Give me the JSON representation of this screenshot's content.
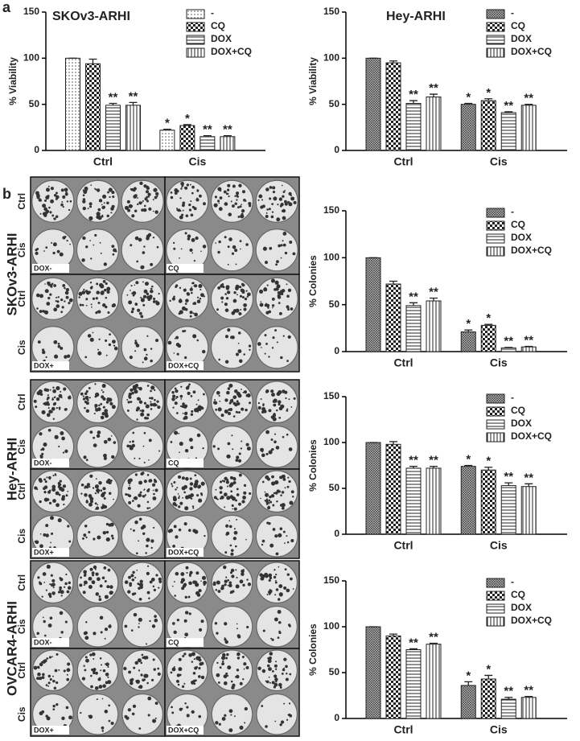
{
  "figure": {
    "panel_labels": [
      "a",
      "b"
    ],
    "cell_lines": [
      "SKOv3-ARHI",
      "Hey-ARHI",
      "OVCAR4-ARHI"
    ],
    "plate_rows": [
      "Ctrl",
      "Cis"
    ],
    "plate_tags": [
      "DOX-",
      "CQ",
      "DOX+",
      "DOX+CQ"
    ]
  },
  "chart_data": [
    {
      "type": "bar",
      "title": "SKOv3-ARHI",
      "ylabel": "% Viability",
      "categories": [
        "Ctrl",
        "Cis"
      ],
      "ylim": [
        0,
        150
      ],
      "yticks": [
        0,
        50,
        100,
        150
      ],
      "series": [
        {
          "name": "-",
          "pattern": "dots",
          "values": [
            100,
            22
          ],
          "errors": [
            0,
            1
          ],
          "significance": [
            null,
            "*"
          ]
        },
        {
          "name": "CQ",
          "pattern": "checker",
          "values": [
            94,
            27
          ],
          "errors": [
            5,
            1
          ],
          "significance": [
            null,
            "*"
          ]
        },
        {
          "name": "DOX",
          "pattern": "hlines",
          "values": [
            49,
            15
          ],
          "errors": [
            2,
            1
          ],
          "significance": [
            "**",
            "**"
          ]
        },
        {
          "name": "DOX+CQ",
          "pattern": "vlines",
          "values": [
            49,
            15
          ],
          "errors": [
            3,
            1
          ],
          "significance": [
            "**",
            "**"
          ]
        }
      ]
    },
    {
      "type": "bar",
      "title": "Hey-ARHI",
      "ylabel": "% Viability",
      "categories": [
        "Ctrl",
        "Cis"
      ],
      "ylim": [
        0,
        150
      ],
      "yticks": [
        0,
        50,
        100,
        150
      ],
      "series": [
        {
          "name": "-",
          "pattern": "cross",
          "values": [
            100,
            50
          ],
          "errors": [
            0,
            1
          ],
          "significance": [
            null,
            "*"
          ]
        },
        {
          "name": "CQ",
          "pattern": "checker",
          "values": [
            95,
            54
          ],
          "errors": [
            2,
            2
          ],
          "significance": [
            null,
            "*"
          ]
        },
        {
          "name": "DOX",
          "pattern": "hlines",
          "values": [
            51,
            41
          ],
          "errors": [
            3,
            1
          ],
          "significance": [
            "**",
            "**"
          ]
        },
        {
          "name": "DOX+CQ",
          "pattern": "vlines",
          "values": [
            58,
            49
          ],
          "errors": [
            3,
            1
          ],
          "significance": [
            "**",
            "**"
          ]
        }
      ]
    },
    {
      "type": "bar",
      "ylabel": "% Colonies",
      "categories": [
        "Ctrl",
        "Cis"
      ],
      "ylim": [
        0,
        150
      ],
      "yticks": [
        0,
        50,
        100,
        150
      ],
      "series": [
        {
          "name": "-",
          "pattern": "cross",
          "values": [
            100,
            21
          ],
          "errors": [
            0,
            2
          ],
          "significance": [
            null,
            "*"
          ]
        },
        {
          "name": "CQ",
          "pattern": "checker",
          "values": [
            72,
            28
          ],
          "errors": [
            3,
            1
          ],
          "significance": [
            null,
            "*"
          ]
        },
        {
          "name": "DOX",
          "pattern": "hlines",
          "values": [
            49,
            4
          ],
          "errors": [
            3,
            0.5
          ],
          "significance": [
            "**",
            "**"
          ]
        },
        {
          "name": "DOX+CQ",
          "pattern": "vlines",
          "values": [
            54,
            5
          ],
          "errors": [
            3,
            0.5
          ],
          "significance": [
            "**",
            "**"
          ]
        }
      ]
    },
    {
      "type": "bar",
      "ylabel": "% Colonies",
      "categories": [
        "Ctrl",
        "Cis"
      ],
      "ylim": [
        0,
        150
      ],
      "yticks": [
        0,
        50,
        100,
        150
      ],
      "series": [
        {
          "name": "-",
          "pattern": "cross",
          "values": [
            100,
            74
          ],
          "errors": [
            0,
            1
          ],
          "significance": [
            null,
            "*"
          ]
        },
        {
          "name": "CQ",
          "pattern": "checker",
          "values": [
            98,
            70
          ],
          "errors": [
            3,
            3
          ],
          "significance": [
            null,
            "*"
          ]
        },
        {
          "name": "DOX",
          "pattern": "hlines",
          "values": [
            72,
            53
          ],
          "errors": [
            2,
            3
          ],
          "significance": [
            "**",
            "**"
          ]
        },
        {
          "name": "DOX+CQ",
          "pattern": "vlines",
          "values": [
            72,
            52
          ],
          "errors": [
            2,
            3
          ],
          "significance": [
            "**",
            "**"
          ]
        }
      ]
    },
    {
      "type": "bar",
      "ylabel": "% Colonies",
      "categories": [
        "Ctrl",
        "Cis"
      ],
      "ylim": [
        0,
        150
      ],
      "yticks": [
        0,
        50,
        100,
        150
      ],
      "series": [
        {
          "name": "-",
          "pattern": "cross",
          "values": [
            100,
            36
          ],
          "errors": [
            0,
            4
          ],
          "significance": [
            null,
            "*"
          ]
        },
        {
          "name": "CQ",
          "pattern": "checker",
          "values": [
            90,
            43
          ],
          "errors": [
            2,
            4
          ],
          "significance": [
            null,
            "*"
          ]
        },
        {
          "name": "DOX",
          "pattern": "hlines",
          "values": [
            75,
            21
          ],
          "errors": [
            1,
            2
          ],
          "significance": [
            "**",
            "**"
          ]
        },
        {
          "name": "DOX+CQ",
          "pattern": "vlines",
          "values": [
            81,
            23
          ],
          "errors": [
            1,
            1
          ],
          "significance": [
            "**",
            "**"
          ]
        }
      ]
    }
  ]
}
